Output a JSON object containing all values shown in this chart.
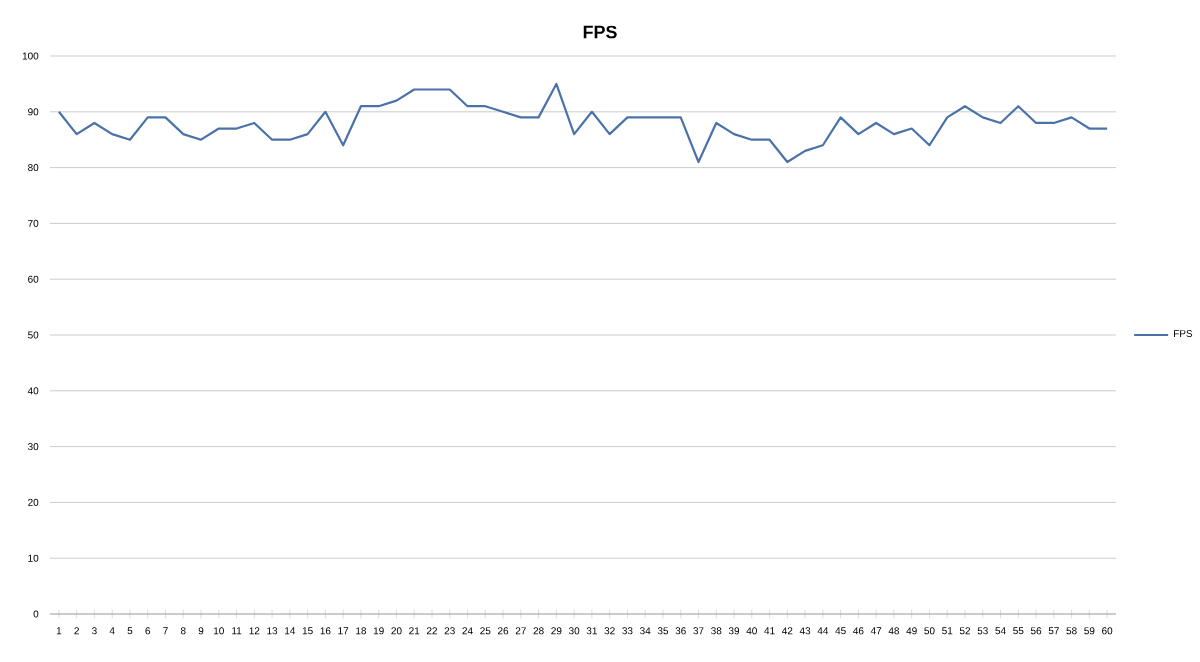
{
  "chart_data": {
    "type": "line",
    "title": "FPS",
    "categories": [
      "1",
      "2",
      "3",
      "4",
      "5",
      "6",
      "7",
      "8",
      "9",
      "10",
      "11",
      "12",
      "13",
      "14",
      "15",
      "16",
      "17",
      "18",
      "19",
      "20",
      "21",
      "22",
      "23",
      "24",
      "25",
      "26",
      "27",
      "28",
      "29",
      "30",
      "31",
      "32",
      "33",
      "34",
      "35",
      "36",
      "37",
      "38",
      "39",
      "40",
      "41",
      "42",
      "43",
      "44",
      "45",
      "46",
      "47",
      "48",
      "49",
      "50",
      "51",
      "52",
      "53",
      "54",
      "55",
      "56",
      "57",
      "58",
      "59",
      "60"
    ],
    "series": [
      {
        "name": "FPS",
        "color": "#4a72a8",
        "values": [
          90,
          86,
          88,
          86,
          85,
          89,
          89,
          86,
          85,
          87,
          87,
          88,
          85,
          85,
          86,
          90,
          84,
          91,
          91,
          92,
          94,
          94,
          94,
          91,
          91,
          90,
          89,
          89,
          95,
          86,
          90,
          86,
          89,
          89,
          89,
          89,
          81,
          88,
          86,
          85,
          85,
          81,
          83,
          84,
          89,
          86,
          88,
          86,
          87,
          84,
          89,
          91,
          89,
          88,
          91,
          88,
          88,
          89,
          87,
          87
        ]
      }
    ],
    "ylim": [
      0,
      100
    ],
    "yticks": [
      0,
      10,
      20,
      30,
      40,
      50,
      60,
      70,
      80,
      90,
      100
    ],
    "grid": "y",
    "legend": "right",
    "marker": "none",
    "line_style": "solid"
  }
}
